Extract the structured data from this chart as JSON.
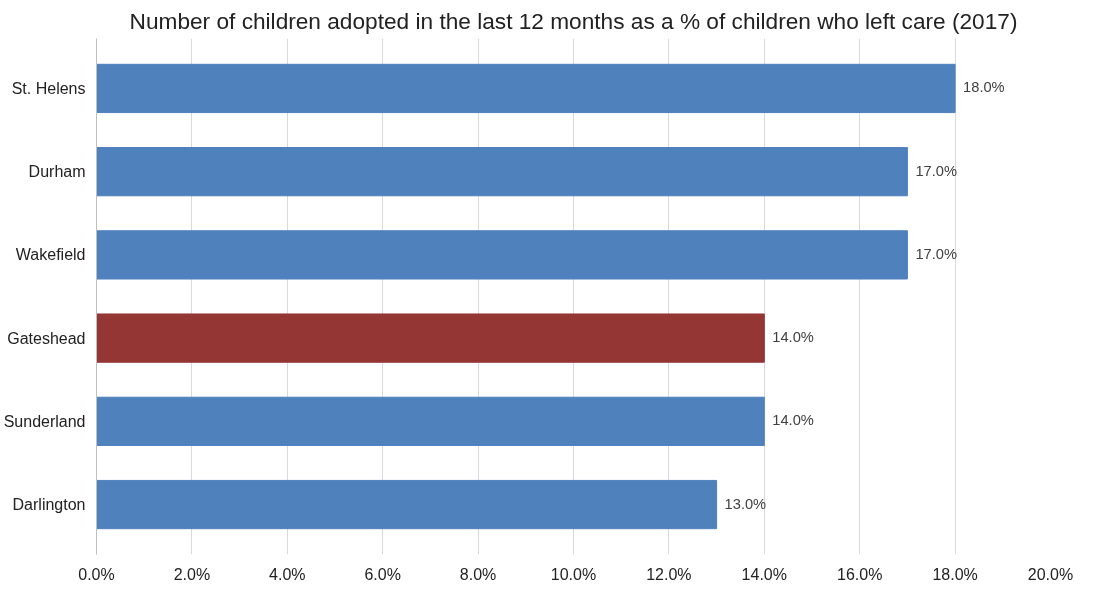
{
  "chart_data": {
    "type": "bar",
    "orientation": "horizontal",
    "title": "Number of children adopted in the last 12 months as a % of children who left care (2017)",
    "categories": [
      "St. Helens",
      "Durham",
      "Wakefield",
      "Gateshead",
      "Sunderland",
      "Darlington"
    ],
    "values": [
      18,
      17,
      17,
      14,
      14,
      13
    ],
    "colors": [
      "#4f81bd",
      "#4f81bd",
      "#4f81bd",
      "#943634",
      "#4f81bd",
      "#4f81bd"
    ],
    "value_labels": [
      "18.0%",
      "17.0%",
      "17.0%",
      "14.0%",
      "14.0%",
      "13.0%"
    ],
    "xlim": [
      0,
      20
    ],
    "xticks": [
      {
        "value": 0,
        "label": "0.0%"
      },
      {
        "value": 2,
        "label": "2.0%"
      },
      {
        "value": 4,
        "label": "4.0%"
      },
      {
        "value": 6,
        "label": "6.0%"
      },
      {
        "value": 8,
        "label": "8.0%"
      },
      {
        "value": 10,
        "label": "10.0%"
      },
      {
        "value": 12,
        "label": "12.0%"
      },
      {
        "value": 14,
        "label": "14.0%"
      },
      {
        "value": 16,
        "label": "16.0%"
      },
      {
        "value": 18,
        "label": "18.0%"
      },
      {
        "value": 20,
        "label": "20.0%"
      }
    ],
    "grid": "x"
  }
}
